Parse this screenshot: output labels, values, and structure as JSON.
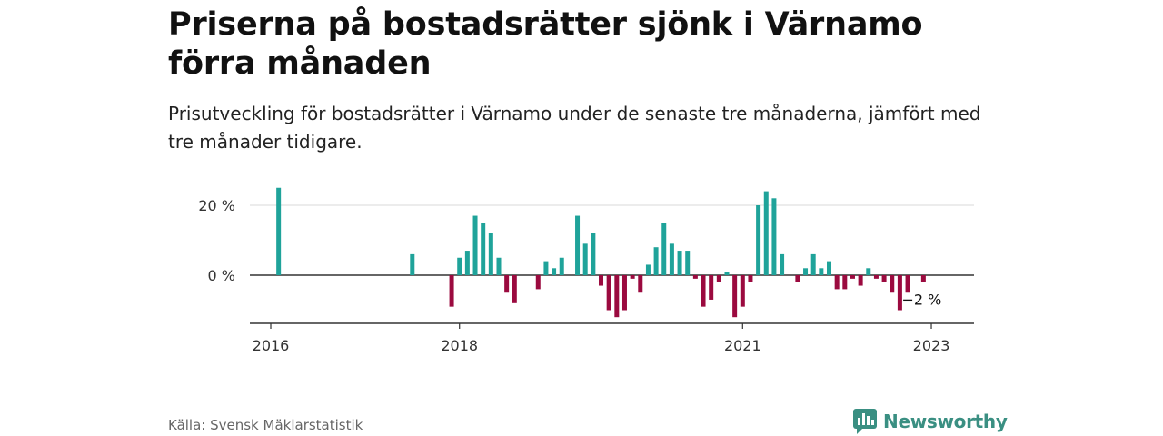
{
  "header": {
    "title": "Priserna på bostadsrätter sjönk i Värnamo förra månaden",
    "subtitle": "Prisutveckling för bostadsrätter i Värnamo under de senaste tre månaderna, jämfört med tre månader tidigare."
  },
  "footer": {
    "source": "Källa: Svensk Mäklarstatistik",
    "brand": "Newsworthy"
  },
  "colors": {
    "positive": "#1fa39a",
    "negative": "#9b0a3f",
    "axis": "#333333",
    "grid": "#d9d9d9",
    "brand": "#3a8f82"
  },
  "icons": {
    "logo": "newsworthy-bar-chart-logo-icon"
  },
  "chart_data": {
    "type": "bar",
    "y_unit": "%",
    "ylim": [
      -14,
      25
    ],
    "y_ticks": [
      {
        "value": 0,
        "label": "0 %"
      },
      {
        "value": 20,
        "label": "20 %"
      }
    ],
    "x_ticks": [
      {
        "label": "2016",
        "month": "2016-01"
      },
      {
        "label": "2018",
        "month": "2018-01"
      },
      {
        "label": "2021",
        "month": "2021-01"
      },
      {
        "label": "2023",
        "month": "2023-01"
      }
    ],
    "grid": true,
    "last_value_label": "−2 %",
    "points": [
      {
        "month": "2016-02",
        "value": 25
      },
      {
        "month": "2017-07",
        "value": 6
      },
      {
        "month": "2017-12",
        "value": -9
      },
      {
        "month": "2018-01",
        "value": 5
      },
      {
        "month": "2018-02",
        "value": 7
      },
      {
        "month": "2018-03",
        "value": 17
      },
      {
        "month": "2018-04",
        "value": 15
      },
      {
        "month": "2018-05",
        "value": 12
      },
      {
        "month": "2018-06",
        "value": 5
      },
      {
        "month": "2018-07",
        "value": -5
      },
      {
        "month": "2018-08",
        "value": -8
      },
      {
        "month": "2018-11",
        "value": -4
      },
      {
        "month": "2018-12",
        "value": 4
      },
      {
        "month": "2019-01",
        "value": 2
      },
      {
        "month": "2019-02",
        "value": 5
      },
      {
        "month": "2019-04",
        "value": 17
      },
      {
        "month": "2019-05",
        "value": 9
      },
      {
        "month": "2019-06",
        "value": 12
      },
      {
        "month": "2019-07",
        "value": -3
      },
      {
        "month": "2019-08",
        "value": -10
      },
      {
        "month": "2019-09",
        "value": -12
      },
      {
        "month": "2019-10",
        "value": -10
      },
      {
        "month": "2019-11",
        "value": -1
      },
      {
        "month": "2019-12",
        "value": -5
      },
      {
        "month": "2020-01",
        "value": 3
      },
      {
        "month": "2020-02",
        "value": 8
      },
      {
        "month": "2020-03",
        "value": 15
      },
      {
        "month": "2020-04",
        "value": 9
      },
      {
        "month": "2020-05",
        "value": 7
      },
      {
        "month": "2020-06",
        "value": 7
      },
      {
        "month": "2020-07",
        "value": -1
      },
      {
        "month": "2020-08",
        "value": -9
      },
      {
        "month": "2020-09",
        "value": -7
      },
      {
        "month": "2020-10",
        "value": -2
      },
      {
        "month": "2020-11",
        "value": 1
      },
      {
        "month": "2020-12",
        "value": -12
      },
      {
        "month": "2021-01",
        "value": -9
      },
      {
        "month": "2021-02",
        "value": -2
      },
      {
        "month": "2021-03",
        "value": 20
      },
      {
        "month": "2021-04",
        "value": 24
      },
      {
        "month": "2021-05",
        "value": 22
      },
      {
        "month": "2021-06",
        "value": 6
      },
      {
        "month": "2021-08",
        "value": -2
      },
      {
        "month": "2021-09",
        "value": 2
      },
      {
        "month": "2021-10",
        "value": 6
      },
      {
        "month": "2021-11",
        "value": 2
      },
      {
        "month": "2021-12",
        "value": 4
      },
      {
        "month": "2022-01",
        "value": -4
      },
      {
        "month": "2022-02",
        "value": -4
      },
      {
        "month": "2022-03",
        "value": -1
      },
      {
        "month": "2022-04",
        "value": -3
      },
      {
        "month": "2022-05",
        "value": 2
      },
      {
        "month": "2022-06",
        "value": -1
      },
      {
        "month": "2022-07",
        "value": -2
      },
      {
        "month": "2022-08",
        "value": -5
      },
      {
        "month": "2022-09",
        "value": -10
      },
      {
        "month": "2022-10",
        "value": -5
      },
      {
        "month": "2022-12",
        "value": -2
      }
    ]
  }
}
